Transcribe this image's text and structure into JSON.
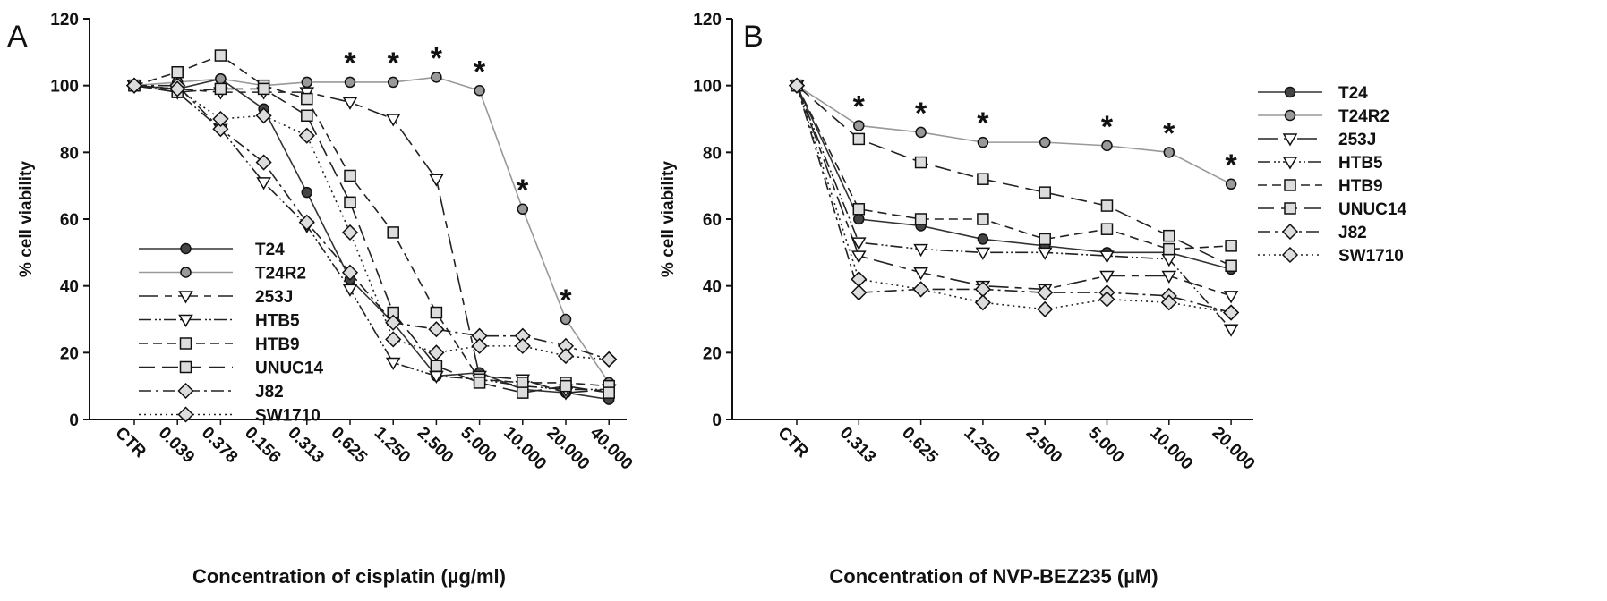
{
  "chart_data": [
    {
      "type": "line",
      "panel_label": "A",
      "title": "",
      "xlabel": "Concentration of cisplatin (µg/ml)",
      "ylabel": "% cell viability",
      "ylim": [
        0,
        120
      ],
      "yticks": [
        "0",
        "20",
        "40",
        "60",
        "80",
        "100",
        "120"
      ],
      "categories": [
        "CTR",
        "0.039",
        "0.378",
        "0.156",
        "0.313",
        "0.625",
        "1.250",
        "2.500",
        "5.000",
        "10.000",
        "20.000",
        "40.000"
      ],
      "significance_marker": "*",
      "significance_at": [
        "0.625",
        "1.250",
        "2.500",
        "5.000",
        "10.000",
        "20.000"
      ],
      "legend_position": "bottom-left",
      "series": [
        {
          "name": "T24",
          "values": [
            100,
            99,
            102,
            93,
            68,
            42,
            29,
            13,
            14,
            9,
            8,
            6
          ]
        },
        {
          "name": "T24R2",
          "values": [
            100,
            101,
            102,
            100,
            101,
            101,
            101,
            102.5,
            98.5,
            63,
            30,
            11
          ]
        },
        {
          "name": "253J",
          "values": [
            100,
            99,
            98,
            98,
            98,
            95,
            90,
            72,
            13,
            12,
            8,
            9
          ]
        },
        {
          "name": "HTB5",
          "values": [
            100,
            98,
            87,
            71,
            58,
            39,
            17,
            13,
            12,
            10,
            9,
            9
          ]
        },
        {
          "name": "HTB9",
          "values": [
            100,
            104,
            109,
            100,
            96,
            73,
            56,
            32,
            12,
            11,
            11,
            10
          ]
        },
        {
          "name": "UNUC14",
          "values": [
            100,
            98,
            99,
            99,
            91,
            65,
            32,
            16,
            11,
            8,
            10,
            8
          ]
        },
        {
          "name": "J82",
          "values": [
            100,
            100,
            87,
            77,
            59,
            44,
            29,
            27,
            25,
            25,
            22,
            18
          ]
        },
        {
          "name": "SW1710",
          "values": [
            100,
            99,
            90,
            91,
            85,
            56,
            24,
            20,
            22,
            22,
            19,
            18
          ]
        }
      ]
    },
    {
      "type": "line",
      "panel_label": "B",
      "title": "",
      "xlabel": "Concentration of NVP-BEZ235 (µM)",
      "ylabel": "% cell viability",
      "ylim": [
        0,
        120
      ],
      "yticks": [
        "0",
        "20",
        "40",
        "60",
        "80",
        "100",
        "120"
      ],
      "categories": [
        "CTR",
        "0.313",
        "0.625",
        "1.250",
        "2.500",
        "5.000",
        "10.000",
        "20.000"
      ],
      "significance_marker": "*",
      "significance_at": [
        "0.313",
        "0.625",
        "1.250",
        "5.000",
        "10.000",
        "20.000"
      ],
      "legend_position": "right",
      "series": [
        {
          "name": "T24",
          "values": [
            100,
            60,
            58,
            54,
            52,
            50,
            50,
            45
          ]
        },
        {
          "name": "T24R2",
          "values": [
            100,
            88,
            86,
            83,
            83,
            82,
            80,
            70.5
          ]
        },
        {
          "name": "253J",
          "values": [
            100,
            49,
            44,
            40,
            39,
            43,
            43,
            37
          ]
        },
        {
          "name": "HTB5",
          "values": [
            100,
            53,
            51,
            50,
            50,
            49,
            48,
            27
          ]
        },
        {
          "name": "HTB9",
          "values": [
            100,
            63,
            60,
            60,
            54,
            57,
            51,
            52
          ]
        },
        {
          "name": "UNUC14",
          "values": [
            100,
            84,
            77,
            72,
            68,
            64,
            55,
            46
          ]
        },
        {
          "name": "J82",
          "values": [
            100,
            38,
            39,
            39,
            38,
            38,
            37,
            32
          ]
        },
        {
          "name": "SW1710",
          "values": [
            100,
            42,
            39,
            35,
            33,
            36,
            35,
            32
          ]
        }
      ]
    }
  ],
  "styles": {
    "T24": {
      "line": "#333333",
      "marker": "circle",
      "fill": "#444444"
    },
    "T24R2": {
      "line": "#999999",
      "marker": "circle",
      "fill": "#999999"
    },
    "253J": {
      "line": "#222222",
      "marker": "tri",
      "fill": "#ffffff"
    },
    "HTB5": {
      "line": "#222222",
      "marker": "tri",
      "fill": "#ffffff"
    },
    "HTB9": {
      "line": "#222222",
      "marker": "square",
      "fill": "#dddddd"
    },
    "UNUC14": {
      "line": "#222222",
      "marker": "square",
      "fill": "#dddddd"
    },
    "J82": {
      "line": "#222222",
      "marker": "diamond",
      "fill": "#dddddd"
    },
    "SW1710": {
      "line": "#222222",
      "marker": "diamond",
      "fill": "#dddddd"
    }
  }
}
